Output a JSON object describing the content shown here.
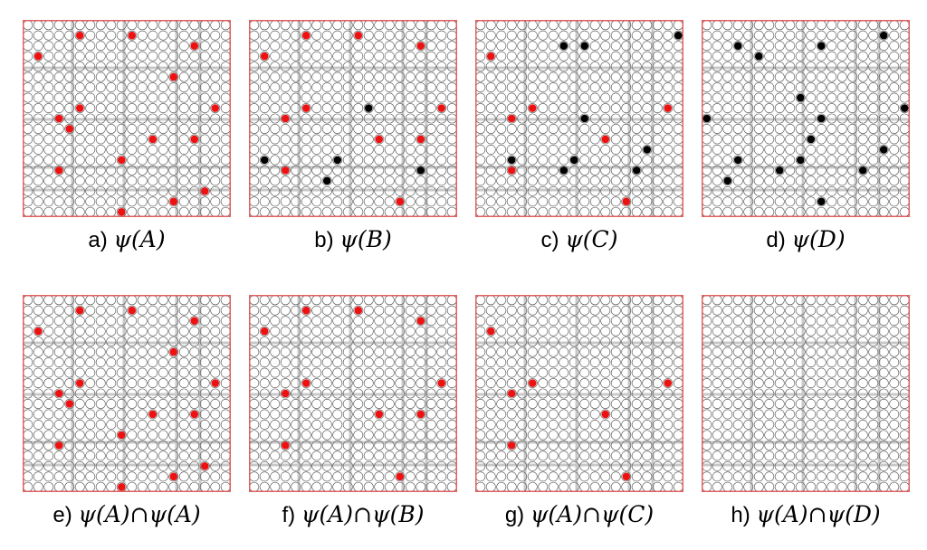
{
  "colors": {
    "frame": "#e06060",
    "grid_line": "#c8c8c8",
    "circle_stroke": "#555555",
    "red_dot": "#ee1111",
    "black_dot": "#000000"
  },
  "grid": {
    "cols": 20,
    "rows": 19
  },
  "panels": [
    {
      "id": "a",
      "letter": "a)",
      "expr": "ψ(A)",
      "dots": [
        {
          "c": 5,
          "r": 1,
          "color": "red"
        },
        {
          "c": 10,
          "r": 1,
          "color": "red"
        },
        {
          "c": 16,
          "r": 2,
          "color": "red"
        },
        {
          "c": 1,
          "r": 3,
          "color": "red"
        },
        {
          "c": 14,
          "r": 5,
          "color": "red"
        },
        {
          "c": 5,
          "r": 8,
          "color": "red"
        },
        {
          "c": 18,
          "r": 8,
          "color": "red"
        },
        {
          "c": 3,
          "r": 9,
          "color": "red"
        },
        {
          "c": 4,
          "r": 10,
          "color": "red"
        },
        {
          "c": 12,
          "r": 11,
          "color": "red"
        },
        {
          "c": 16,
          "r": 11,
          "color": "red"
        },
        {
          "c": 9,
          "r": 13,
          "color": "red"
        },
        {
          "c": 3,
          "r": 14,
          "color": "red"
        },
        {
          "c": 17,
          "r": 16,
          "color": "red"
        },
        {
          "c": 14,
          "r": 17,
          "color": "red"
        },
        {
          "c": 9,
          "r": 18,
          "color": "red"
        }
      ]
    },
    {
      "id": "b",
      "letter": "b)",
      "expr": "ψ(B)",
      "dots": [
        {
          "c": 5,
          "r": 1,
          "color": "red"
        },
        {
          "c": 10,
          "r": 1,
          "color": "red"
        },
        {
          "c": 16,
          "r": 2,
          "color": "red"
        },
        {
          "c": 1,
          "r": 3,
          "color": "red"
        },
        {
          "c": 5,
          "r": 8,
          "color": "red"
        },
        {
          "c": 18,
          "r": 8,
          "color": "red"
        },
        {
          "c": 3,
          "r": 9,
          "color": "red"
        },
        {
          "c": 11,
          "r": 8,
          "color": "black"
        },
        {
          "c": 12,
          "r": 11,
          "color": "red"
        },
        {
          "c": 16,
          "r": 11,
          "color": "red"
        },
        {
          "c": 1,
          "r": 13,
          "color": "black"
        },
        {
          "c": 8,
          "r": 13,
          "color": "black"
        },
        {
          "c": 3,
          "r": 14,
          "color": "red"
        },
        {
          "c": 16,
          "r": 14,
          "color": "black"
        },
        {
          "c": 7,
          "r": 15,
          "color": "black"
        },
        {
          "c": 14,
          "r": 17,
          "color": "red"
        }
      ]
    },
    {
      "id": "c",
      "letter": "c)",
      "expr": "ψ(C)",
      "dots": [
        {
          "c": 19,
          "r": 1,
          "color": "black"
        },
        {
          "c": 8,
          "r": 2,
          "color": "black"
        },
        {
          "c": 10,
          "r": 2,
          "color": "black"
        },
        {
          "c": 1,
          "r": 3,
          "color": "red"
        },
        {
          "c": 5,
          "r": 8,
          "color": "red"
        },
        {
          "c": 18,
          "r": 8,
          "color": "red"
        },
        {
          "c": 3,
          "r": 9,
          "color": "red"
        },
        {
          "c": 10,
          "r": 9,
          "color": "black"
        },
        {
          "c": 12,
          "r": 11,
          "color": "red"
        },
        {
          "c": 16,
          "r": 12,
          "color": "black"
        },
        {
          "c": 3,
          "r": 13,
          "color": "black"
        },
        {
          "c": 9,
          "r": 13,
          "color": "black"
        },
        {
          "c": 3,
          "r": 14,
          "color": "red"
        },
        {
          "c": 8,
          "r": 14,
          "color": "black"
        },
        {
          "c": 15,
          "r": 14,
          "color": "black"
        },
        {
          "c": 14,
          "r": 17,
          "color": "red"
        }
      ]
    },
    {
      "id": "d",
      "letter": "d)",
      "expr": "ψ(D)",
      "dots": [
        {
          "c": 17,
          "r": 1,
          "color": "black"
        },
        {
          "c": 3,
          "r": 2,
          "color": "black"
        },
        {
          "c": 11,
          "r": 2,
          "color": "black"
        },
        {
          "c": 5,
          "r": 3,
          "color": "black"
        },
        {
          "c": 9,
          "r": 7,
          "color": "black"
        },
        {
          "c": 19,
          "r": 8,
          "color": "black"
        },
        {
          "c": 0,
          "r": 9,
          "color": "black"
        },
        {
          "c": 11,
          "r": 9,
          "color": "black"
        },
        {
          "c": 10,
          "r": 11,
          "color": "black"
        },
        {
          "c": 17,
          "r": 12,
          "color": "black"
        },
        {
          "c": 3,
          "r": 13,
          "color": "black"
        },
        {
          "c": 9,
          "r": 13,
          "color": "black"
        },
        {
          "c": 7,
          "r": 14,
          "color": "black"
        },
        {
          "c": 15,
          "r": 14,
          "color": "black"
        },
        {
          "c": 2,
          "r": 15,
          "color": "black"
        },
        {
          "c": 11,
          "r": 17,
          "color": "black"
        }
      ]
    },
    {
      "id": "e",
      "letter": "e)",
      "expr": "ψ(A)∩ψ(A)",
      "dots": [
        {
          "c": 5,
          "r": 1,
          "color": "red"
        },
        {
          "c": 10,
          "r": 1,
          "color": "red"
        },
        {
          "c": 16,
          "r": 2,
          "color": "red"
        },
        {
          "c": 1,
          "r": 3,
          "color": "red"
        },
        {
          "c": 14,
          "r": 5,
          "color": "red"
        },
        {
          "c": 5,
          "r": 8,
          "color": "red"
        },
        {
          "c": 18,
          "r": 8,
          "color": "red"
        },
        {
          "c": 3,
          "r": 9,
          "color": "red"
        },
        {
          "c": 4,
          "r": 10,
          "color": "red"
        },
        {
          "c": 12,
          "r": 11,
          "color": "red"
        },
        {
          "c": 16,
          "r": 11,
          "color": "red"
        },
        {
          "c": 9,
          "r": 13,
          "color": "red"
        },
        {
          "c": 3,
          "r": 14,
          "color": "red"
        },
        {
          "c": 17,
          "r": 16,
          "color": "red"
        },
        {
          "c": 14,
          "r": 17,
          "color": "red"
        },
        {
          "c": 9,
          "r": 18,
          "color": "red"
        }
      ]
    },
    {
      "id": "f",
      "letter": "f)",
      "expr": "ψ(A)∩ψ(B)",
      "dots": [
        {
          "c": 5,
          "r": 1,
          "color": "red"
        },
        {
          "c": 10,
          "r": 1,
          "color": "red"
        },
        {
          "c": 16,
          "r": 2,
          "color": "red"
        },
        {
          "c": 1,
          "r": 3,
          "color": "red"
        },
        {
          "c": 5,
          "r": 8,
          "color": "red"
        },
        {
          "c": 18,
          "r": 8,
          "color": "red"
        },
        {
          "c": 3,
          "r": 9,
          "color": "red"
        },
        {
          "c": 12,
          "r": 11,
          "color": "red"
        },
        {
          "c": 16,
          "r": 11,
          "color": "red"
        },
        {
          "c": 3,
          "r": 14,
          "color": "red"
        },
        {
          "c": 14,
          "r": 17,
          "color": "red"
        }
      ]
    },
    {
      "id": "g",
      "letter": "g)",
      "expr": "ψ(A)∩ψ(C)",
      "dots": [
        {
          "c": 1,
          "r": 3,
          "color": "red"
        },
        {
          "c": 5,
          "r": 8,
          "color": "red"
        },
        {
          "c": 18,
          "r": 8,
          "color": "red"
        },
        {
          "c": 3,
          "r": 9,
          "color": "red"
        },
        {
          "c": 12,
          "r": 11,
          "color": "red"
        },
        {
          "c": 3,
          "r": 14,
          "color": "red"
        },
        {
          "c": 14,
          "r": 17,
          "color": "red"
        }
      ]
    },
    {
      "id": "h",
      "letter": "h)",
      "expr": "ψ(A)∩ψ(D)",
      "dots": []
    }
  ]
}
